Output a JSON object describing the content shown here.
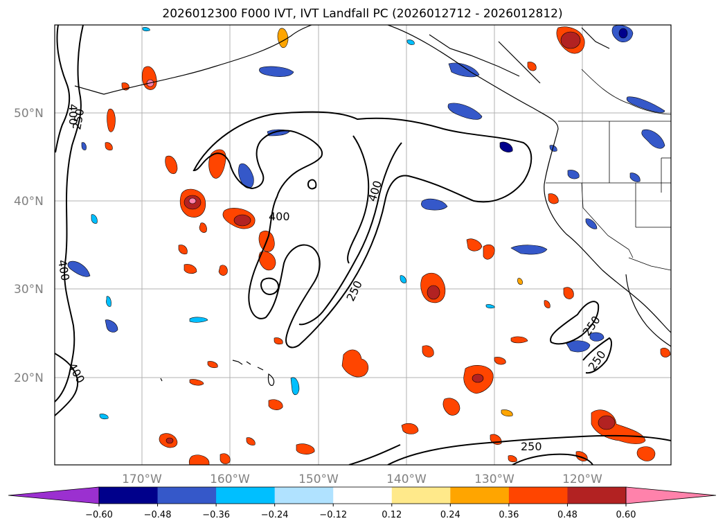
{
  "title": "2026012300 F000 IVT, IVT Landfall PC (2026012712 - 2026012812)",
  "map": {
    "lat_labels": [
      "50°N",
      "40°N",
      "30°N",
      "20°N"
    ],
    "lon_labels": [
      "170°W",
      "160°W",
      "150°W",
      "140°W",
      "130°W",
      "120°W"
    ],
    "contour_labels": [
      "400",
      "250",
      "400",
      "400",
      "250",
      "400",
      "250",
      "250",
      "250",
      "400"
    ],
    "contour_color": "#000000",
    "grid_color": "#b0b0b0"
  },
  "colorbar": {
    "ticks": [
      "−0.60",
      "−0.48",
      "−0.36",
      "−0.24",
      "−0.12",
      "0.12",
      "0.24",
      "0.36",
      "0.48",
      "0.60"
    ],
    "colors": [
      "#9b30d0",
      "#00008b",
      "#3558c9",
      "#00bfff",
      "#b0e2ff",
      "#ffffff",
      "#ffe98a",
      "#ffa500",
      "#ff4500",
      "#b22222",
      "#ff82ab"
    ]
  }
}
